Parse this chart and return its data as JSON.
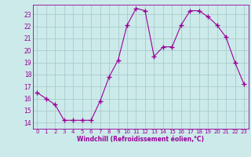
{
  "x": [
    0,
    1,
    2,
    3,
    4,
    5,
    6,
    7,
    8,
    9,
    10,
    11,
    12,
    13,
    14,
    15,
    16,
    17,
    18,
    19,
    20,
    21,
    22,
    23
  ],
  "y": [
    16.5,
    16.0,
    15.5,
    14.2,
    14.2,
    14.2,
    14.2,
    15.8,
    17.8,
    19.2,
    22.1,
    23.5,
    23.3,
    19.5,
    20.3,
    20.3,
    22.1,
    23.3,
    23.3,
    22.8,
    22.1,
    21.1,
    19.0,
    17.2
  ],
  "line_color": "#990099",
  "marker": "D",
  "marker_size": 2.0,
  "bg_color": "#cceaea",
  "grid_color": "#aacccc",
  "xlabel": "Windchill (Refroidissement éolien,°C)",
  "xlabel_color": "#990099",
  "tick_color": "#990099",
  "ylim": [
    13.5,
    23.8
  ],
  "xlim": [
    -0.5,
    23.5
  ],
  "yticks": [
    14,
    15,
    16,
    17,
    18,
    19,
    20,
    21,
    22,
    23
  ],
  "xticks": [
    0,
    1,
    2,
    3,
    4,
    5,
    6,
    7,
    8,
    9,
    10,
    11,
    12,
    13,
    14,
    15,
    16,
    17,
    18,
    19,
    20,
    21,
    22,
    23
  ]
}
